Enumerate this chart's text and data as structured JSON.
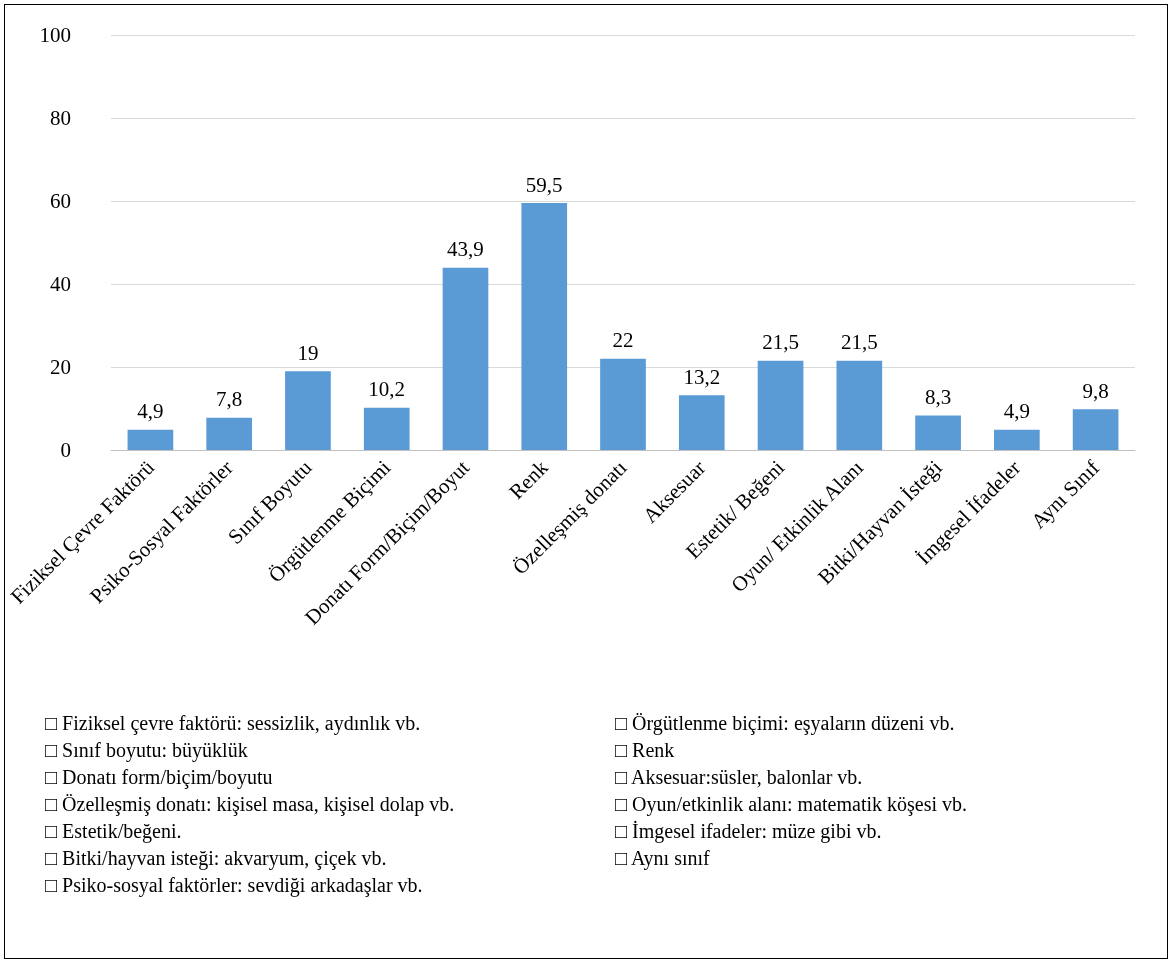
{
  "chart_data": {
    "type": "bar",
    "categories": [
      "Fiziksel Çevre Faktörü",
      "Psiko-Sosyal Faktörler",
      "Sınıf Boyutu",
      "Örgütlenme Biçimi",
      "Donatı Form/Biçim/Boyut",
      "Renk",
      "Özelleşmiş donatı",
      "Aksesuar",
      "Estetik/ Beğeni",
      "Oyun/ Etkinlik Alanı",
      "Bitki/Hayvan İsteği",
      "İmgesel İfadeler",
      "Aynı Sınıf"
    ],
    "values": [
      4.9,
      7.8,
      19,
      10.2,
      43.9,
      59.5,
      22,
      13.2,
      21.5,
      21.5,
      8.3,
      4.9,
      9.8
    ],
    "value_labels": [
      "4,9",
      "7,8",
      "19",
      "10,2",
      "43,9",
      "59,5",
      "22",
      "13,2",
      "21,5",
      "21,5",
      "8,3",
      "4,9",
      "9,8"
    ],
    "color": "#5b9bd5",
    "ylim": [
      0,
      100
    ],
    "yticks": [
      0,
      20,
      40,
      60,
      80,
      100
    ],
    "grid": "y",
    "annotations": [
      "□ Fiziksel çevre faktörü: sessizlik, aydınlık vb.",
      "□ Sınıf boyutu: büyüklük",
      "□ Donatı form/biçim/boyutu",
      "□ Özelleşmiş donatı: kişisel masa, kişisel dolap vb.",
      "□ Estetik/beğeni.",
      "□ Bitki/hayvan isteği: akvaryum, çiçek vb.",
      "□ Psiko-sosyal faktörler: sevdiği arkadaşlar vb.",
      "□ Örgütlenme biçimi: eşyaların düzeni vb.",
      "□ Renk",
      "□ Aksesuar:süsler, balonlar vb.",
      "□ Oyun/etkinlik alanı: matematik köşesi vb.",
      "□ İmgesel ifadeler: müze gibi vb.",
      "□ Aynı sınıf"
    ]
  }
}
